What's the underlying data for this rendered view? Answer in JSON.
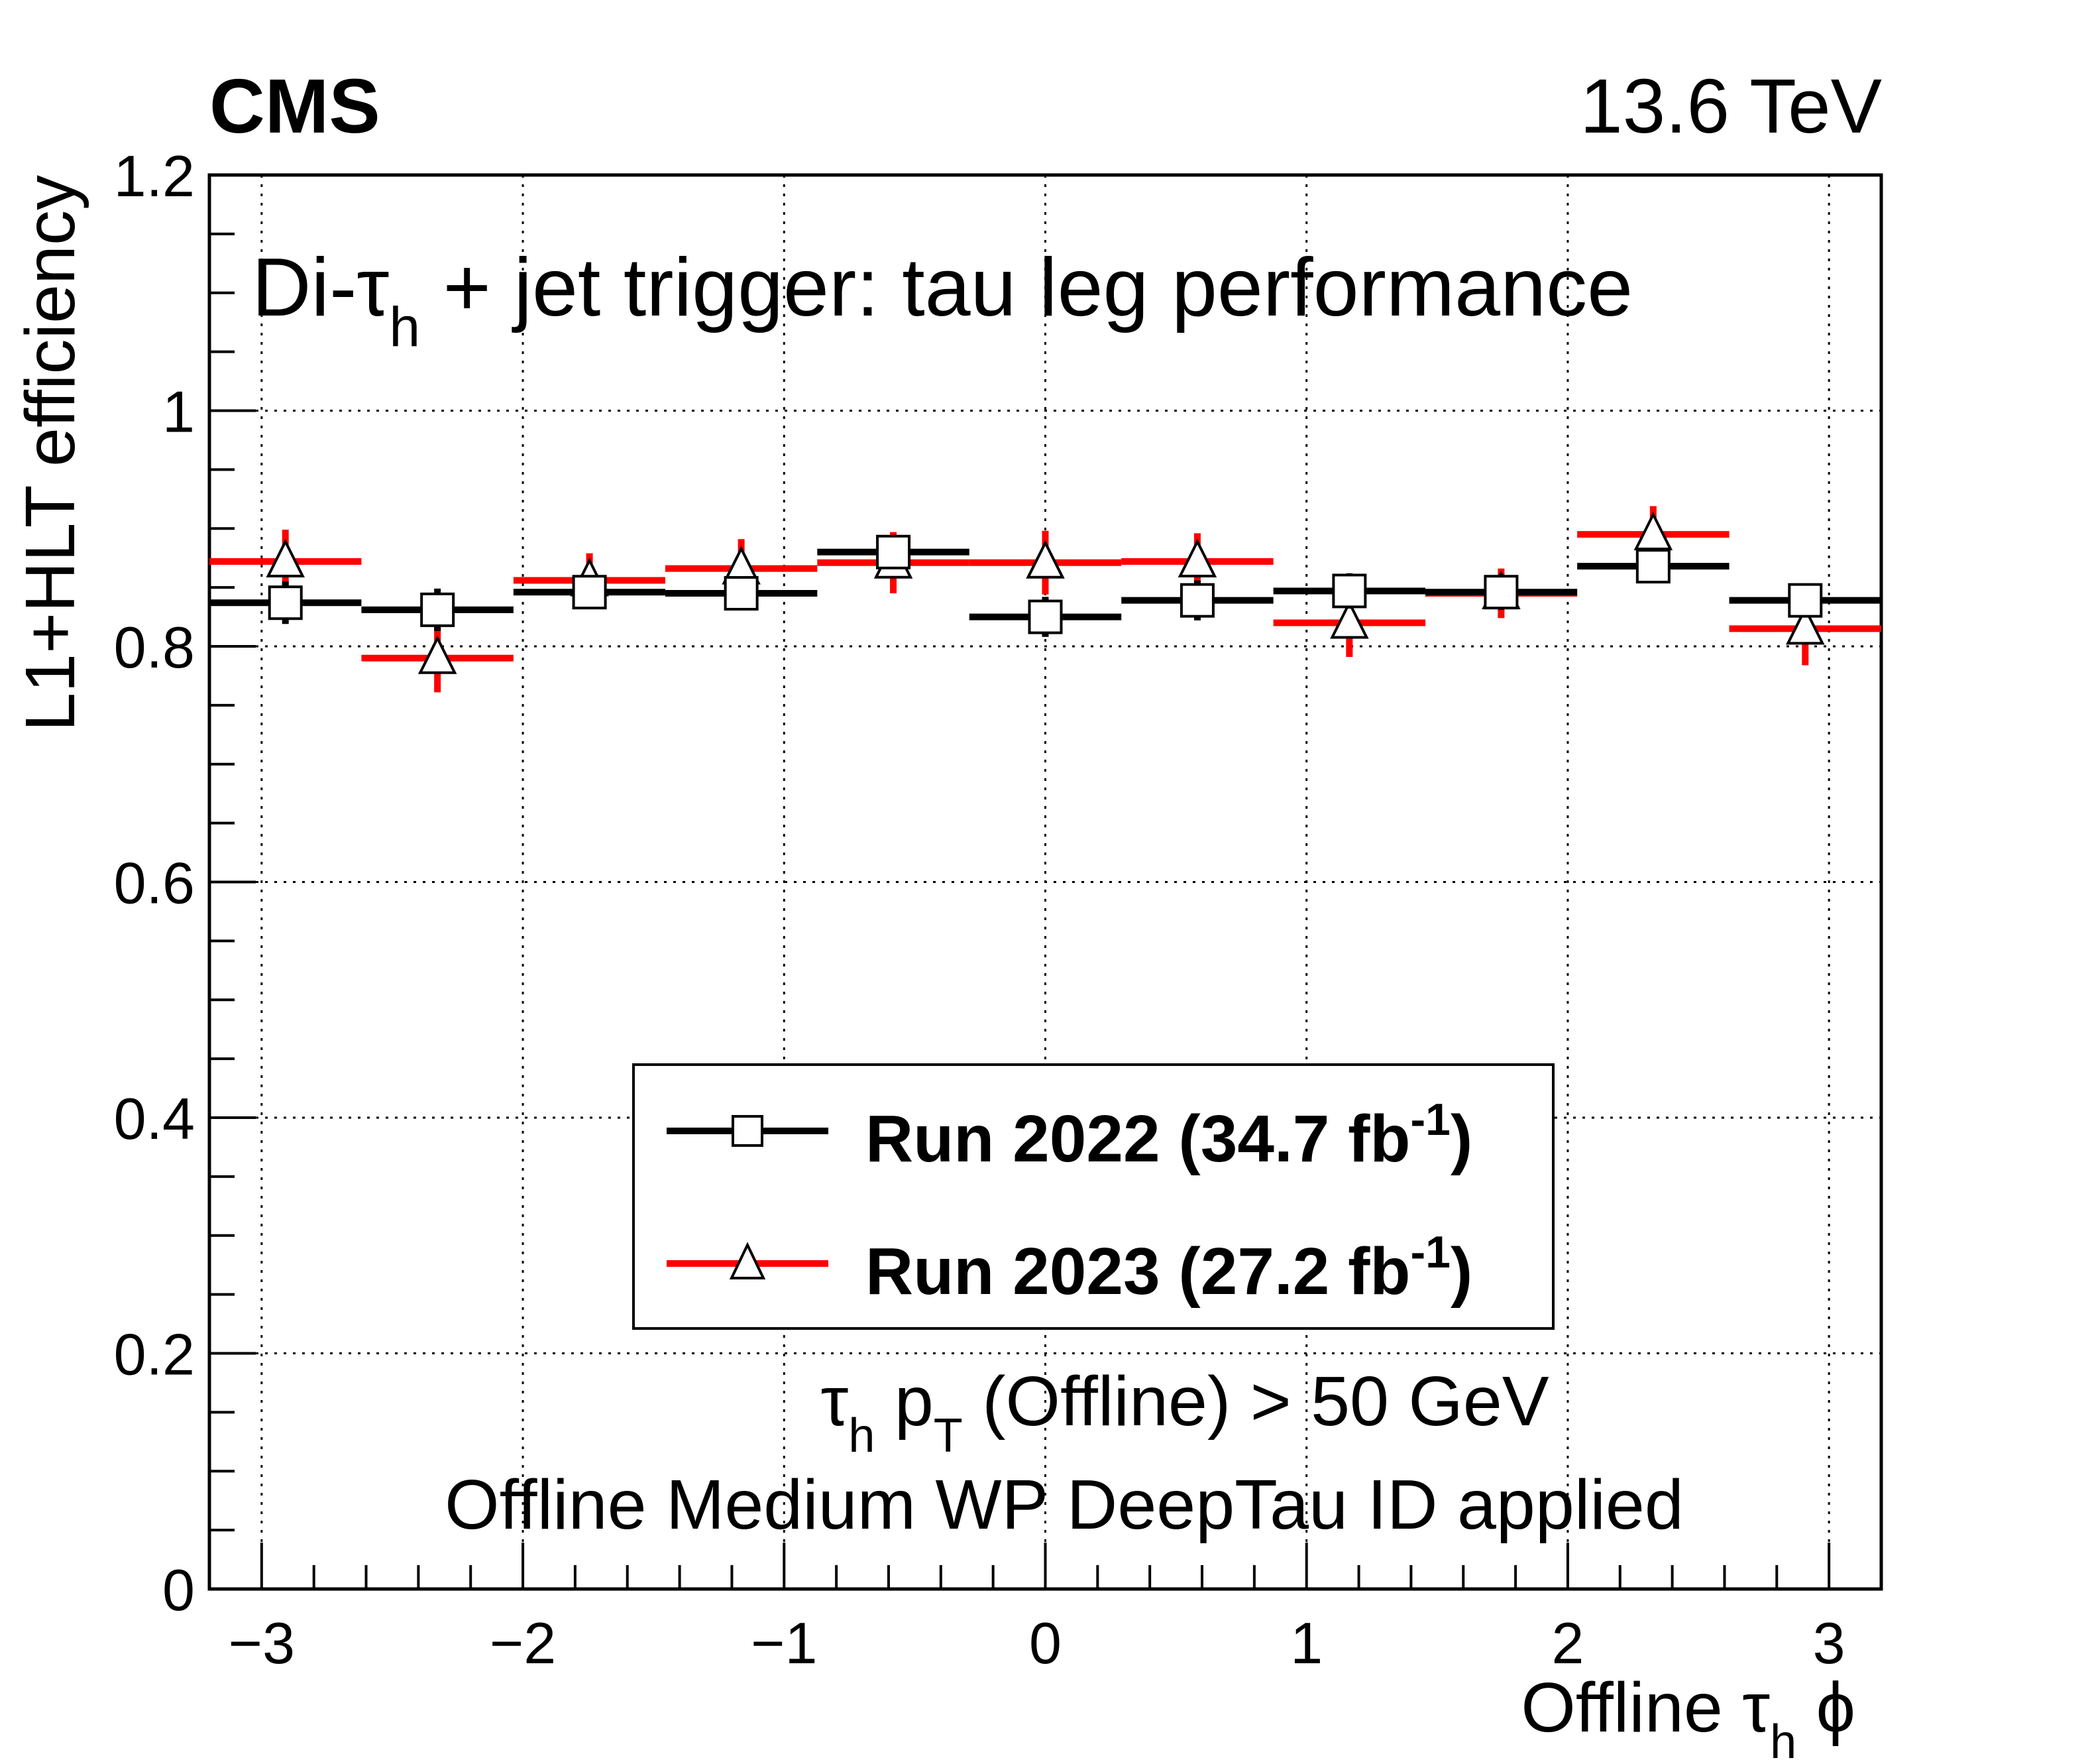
{
  "header": {
    "experiment": "CMS",
    "energy": "13.6 TeV"
  },
  "annotations": {
    "title_prefix": "Di-τ",
    "title_sub": "h",
    "title_suffix": " + jet trigger: tau leg performance",
    "cut_tau": "τ",
    "cut_h": "h",
    "cut_p": " p",
    "cut_T": "T",
    "cut_rest": " (Offline) > 50 GeV",
    "id_line": "Offline Medium WP DeepTau ID applied"
  },
  "axes": {
    "ylabel": "L1+HLT efficiency",
    "xlabel_prefix": "Offline τ",
    "xlabel_sub": "h",
    "xlabel_suffix": " ϕ"
  },
  "legend": {
    "entries": [
      {
        "name": "Run 2022",
        "text": "Run 2022 (34.7 fb",
        "sup": "-1",
        "close": ")"
      },
      {
        "name": "Run 2023",
        "text": "Run 2023 (27.2 fb",
        "sup": "-1",
        "close": ")"
      }
    ]
  },
  "colors": {
    "run2022": "#000000",
    "run2023": "#ff0000"
  },
  "chart_data": {
    "type": "scatter",
    "title": "Di-τh + jet trigger: tau leg performance",
    "xlabel": "Offline τh ϕ",
    "ylabel": "L1+HLT efficiency",
    "xlim": [
      -3.2,
      3.2
    ],
    "ylim": [
      0,
      1.2
    ],
    "xticks": [
      -3,
      -2,
      -1,
      0,
      1,
      2,
      3
    ],
    "xtick_labels": [
      "−3",
      "−2",
      "−1",
      "0",
      "1",
      "2",
      "3"
    ],
    "yticks": [
      0,
      0.2,
      0.4,
      0.6,
      0.8,
      1,
      1.2
    ],
    "ytick_labels": [
      "0",
      "0.2",
      "0.4",
      "0.6",
      "0.8",
      "1",
      "1.2"
    ],
    "grid": true,
    "legend_position": "lower-center",
    "bin_edges": [
      -3.2,
      -2.618,
      -2.036,
      -1.455,
      -0.873,
      -0.291,
      0.291,
      0.873,
      1.455,
      2.036,
      2.618,
      3.2
    ],
    "series": [
      {
        "name": "Run 2022 (34.7 fb-1)",
        "marker": "open-square",
        "x": [
          -2.909,
          -2.327,
          -1.745,
          -1.164,
          -0.582,
          0.0,
          0.582,
          1.164,
          1.745,
          2.327,
          2.909
        ],
        "values": [
          0.837,
          0.831,
          0.846,
          0.845,
          0.88,
          0.825,
          0.839,
          0.847,
          0.846,
          0.868,
          0.839
        ],
        "err": [
          0.018,
          0.018,
          0.012,
          0.014,
          0.012,
          0.017,
          0.017,
          0.015,
          0.015,
          0.014,
          0.014
        ]
      },
      {
        "name": "Run 2023 (27.2 fb-1)",
        "marker": "open-triangle",
        "x": [
          -2.909,
          -2.327,
          -1.745,
          -1.164,
          -0.582,
          0.0,
          0.582,
          1.164,
          1.745,
          2.327,
          2.909
        ],
        "values": [
          0.872,
          0.79,
          0.856,
          0.866,
          0.871,
          0.871,
          0.872,
          0.82,
          0.845,
          0.895,
          0.815
        ],
        "err": [
          0.027,
          0.029,
          0.023,
          0.025,
          0.026,
          0.027,
          0.024,
          0.029,
          0.021,
          0.024,
          0.031
        ]
      }
    ]
  }
}
